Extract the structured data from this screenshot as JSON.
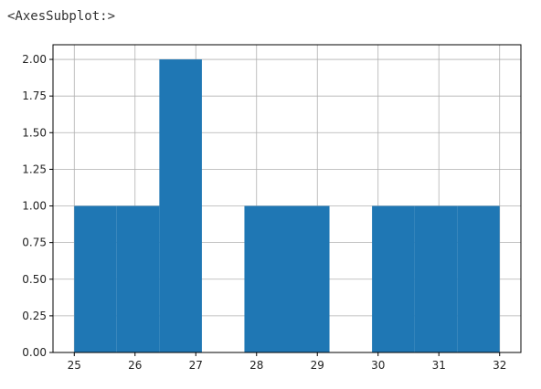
{
  "output_repr": "<AxesSubplot:>",
  "colors": {
    "bar": "#1f77b4",
    "grid": "#b0b0b0",
    "axis": "#000000",
    "background": "#ffffff"
  },
  "chart_data": {
    "type": "bar",
    "title": "",
    "xlabel": "",
    "ylabel": "",
    "grid": true,
    "bins": [
      {
        "x0": 25.0,
        "x1": 25.7,
        "count": 1
      },
      {
        "x0": 25.7,
        "x1": 26.4,
        "count": 1
      },
      {
        "x0": 26.4,
        "x1": 27.1,
        "count": 2
      },
      {
        "x0": 27.1,
        "x1": 27.8,
        "count": 0
      },
      {
        "x0": 27.8,
        "x1": 28.5,
        "count": 1
      },
      {
        "x0": 28.5,
        "x1": 29.2,
        "count": 1
      },
      {
        "x0": 29.2,
        "x1": 29.9,
        "count": 0
      },
      {
        "x0": 29.9,
        "x1": 30.6,
        "count": 1
      },
      {
        "x0": 30.6,
        "x1": 31.3,
        "count": 1
      },
      {
        "x0": 31.3,
        "x1": 32.0,
        "count": 1
      }
    ],
    "xlim": [
      24.65,
      32.35
    ],
    "ylim": [
      0,
      2.1
    ],
    "xticks": [
      25,
      26,
      27,
      28,
      29,
      30,
      31,
      32
    ],
    "xtick_labels": [
      "25",
      "26",
      "27",
      "28",
      "29",
      "30",
      "31",
      "32"
    ],
    "yticks": [
      0,
      0.25,
      0.5,
      0.75,
      1.0,
      1.25,
      1.5,
      1.75,
      2.0
    ],
    "ytick_labels": [
      "0.00",
      "0.25",
      "0.50",
      "0.75",
      "1.00",
      "1.25",
      "1.50",
      "1.75",
      "2.00"
    ]
  }
}
